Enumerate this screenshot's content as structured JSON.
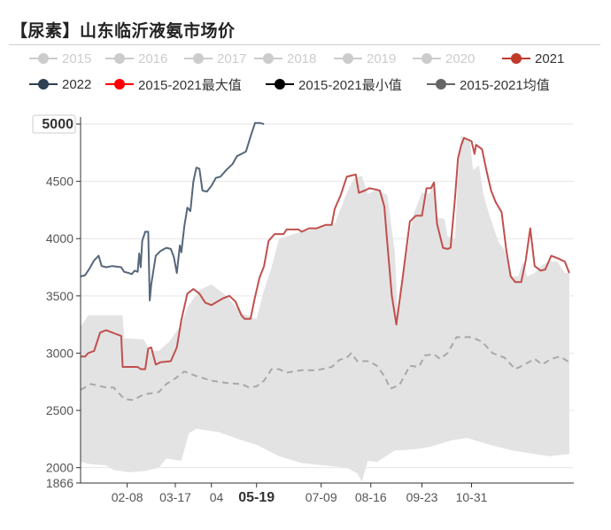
{
  "title": "【尿素】山东临沂液氨市场价",
  "legend": [
    {
      "label": "2015",
      "color": "#cccccc",
      "label_color": "#cccccc",
      "active": false
    },
    {
      "label": "2016",
      "color": "#cccccc",
      "label_color": "#cccccc",
      "active": false
    },
    {
      "label": "2017",
      "color": "#cccccc",
      "label_color": "#cccccc",
      "active": false
    },
    {
      "label": "2018",
      "color": "#cccccc",
      "label_color": "#cccccc",
      "active": false
    },
    {
      "label": "2019",
      "color": "#cccccc",
      "label_color": "#cccccc",
      "active": false
    },
    {
      "label": "2020",
      "color": "#cccccc",
      "label_color": "#cccccc",
      "active": false
    },
    {
      "label": "2021",
      "color": "#c0392b",
      "label_color": "#333333",
      "active": true
    },
    {
      "label": "2022",
      "color": "#2e4053",
      "label_color": "#333333",
      "active": true
    },
    {
      "label": "2015-2021最大值",
      "color": "#ff0000",
      "label_color": "#333333",
      "active": true
    },
    {
      "label": "2015-2021最小值",
      "color": "#000000",
      "label_color": "#333333",
      "active": true
    },
    {
      "label": "2015-2021均值",
      "color": "#666666",
      "label_color": "#333333",
      "active": true
    }
  ],
  "chart_data": {
    "type": "line",
    "x_range": [
      0,
      365
    ],
    "ylim": [
      1866,
      5000
    ],
    "y_ticks": [
      {
        "value": 5000,
        "label": "5000",
        "highlight": true
      },
      {
        "value": 4500,
        "label": "4500"
      },
      {
        "value": 4000,
        "label": "4000"
      },
      {
        "value": 3500,
        "label": "3500"
      },
      {
        "value": 3000,
        "label": "3000"
      },
      {
        "value": 2500,
        "label": "2500"
      },
      {
        "value": 2000,
        "label": "2000"
      },
      {
        "value": 1866,
        "label": "1866"
      }
    ],
    "x_ticks": [
      {
        "day": 34,
        "label": "02-08"
      },
      {
        "day": 66,
        "label": "03-17"
      },
      {
        "day": 90,
        "label": "04",
        "clip": true
      },
      {
        "day": 120,
        "label": "05-19",
        "highlight": true
      },
      {
        "day": 163,
        "label": "07-09"
      },
      {
        "day": 196,
        "label": "08-16"
      },
      {
        "day": 230,
        "label": "09-23"
      },
      {
        "day": 263,
        "label": "10-31"
      }
    ],
    "band": {
      "name": "2015-2021 range",
      "color": "#e3e3e3",
      "upper": [
        [
          3,
          3230
        ],
        [
          8,
          3330
        ],
        [
          31,
          3330
        ],
        [
          32,
          3130
        ],
        [
          45,
          3120
        ],
        [
          49,
          3020
        ],
        [
          55,
          3020
        ],
        [
          62,
          3100
        ],
        [
          70,
          3250
        ],
        [
          74,
          3400
        ],
        [
          82,
          3550
        ],
        [
          90,
          3600
        ],
        [
          100,
          3500
        ],
        [
          110,
          3350
        ],
        [
          114,
          3330
        ],
        [
          120,
          3300
        ],
        [
          125,
          3550
        ],
        [
          130,
          3750
        ],
        [
          135,
          4000
        ],
        [
          140,
          4020
        ],
        [
          150,
          4060
        ],
        [
          160,
          4090
        ],
        [
          172,
          4130
        ],
        [
          180,
          4400
        ],
        [
          185,
          4530
        ],
        [
          190,
          4550
        ],
        [
          194,
          4390
        ],
        [
          200,
          4430
        ],
        [
          207,
          4380
        ],
        [
          212,
          3880
        ],
        [
          214,
          3300
        ],
        [
          218,
          3700
        ],
        [
          224,
          4200
        ],
        [
          230,
          4400
        ],
        [
          235,
          4390
        ],
        [
          238,
          4500
        ],
        [
          239,
          4190
        ],
        [
          245,
          4170
        ],
        [
          247,
          4020
        ],
        [
          252,
          4000
        ],
        [
          254,
          4530
        ],
        [
          256,
          4900
        ],
        [
          262,
          4850
        ],
        [
          264,
          4600
        ],
        [
          268,
          4640
        ],
        [
          271,
          4380
        ],
        [
          275,
          4200
        ],
        [
          281,
          3970
        ],
        [
          285,
          3900
        ],
        [
          290,
          3670
        ],
        [
          294,
          3670
        ],
        [
          297,
          3800
        ],
        [
          300,
          3670
        ],
        [
          305,
          3700
        ],
        [
          310,
          3770
        ],
        [
          315,
          3800
        ],
        [
          320,
          3800
        ],
        [
          325,
          3700
        ],
        [
          328,
          3700
        ]
      ],
      "lower": [
        [
          3,
          2050
        ],
        [
          10,
          2030
        ],
        [
          20,
          2020
        ],
        [
          25,
          1980
        ],
        [
          35,
          1960
        ],
        [
          45,
          1970
        ],
        [
          55,
          2000
        ],
        [
          60,
          2080
        ],
        [
          70,
          2060
        ],
        [
          75,
          2300
        ],
        [
          80,
          2340
        ],
        [
          95,
          2310
        ],
        [
          110,
          2240
        ],
        [
          120,
          2200
        ],
        [
          135,
          2100
        ],
        [
          150,
          2040
        ],
        [
          165,
          2020
        ],
        [
          180,
          2000
        ],
        [
          187,
          1950
        ],
        [
          190,
          1880
        ],
        [
          194,
          2060
        ],
        [
          200,
          2050
        ],
        [
          212,
          2150
        ],
        [
          225,
          2160
        ],
        [
          235,
          2180
        ],
        [
          250,
          2240
        ],
        [
          260,
          2260
        ],
        [
          275,
          2200
        ],
        [
          290,
          2150
        ],
        [
          305,
          2120
        ],
        [
          315,
          2100
        ],
        [
          328,
          2120
        ]
      ]
    },
    "series": [
      {
        "name": "2015-2021均值",
        "color": "#a8a8a8",
        "dashed": true,
        "points": [
          [
            3,
            2680
          ],
          [
            10,
            2730
          ],
          [
            20,
            2700
          ],
          [
            25,
            2700
          ],
          [
            32,
            2600
          ],
          [
            38,
            2590
          ],
          [
            45,
            2640
          ],
          [
            55,
            2660
          ],
          [
            60,
            2730
          ],
          [
            66,
            2780
          ],
          [
            72,
            2840
          ],
          [
            80,
            2800
          ],
          [
            90,
            2760
          ],
          [
            100,
            2740
          ],
          [
            110,
            2730
          ],
          [
            115,
            2700
          ],
          [
            120,
            2710
          ],
          [
            125,
            2760
          ],
          [
            130,
            2860
          ],
          [
            135,
            2860
          ],
          [
            140,
            2830
          ],
          [
            150,
            2850
          ],
          [
            160,
            2850
          ],
          [
            170,
            2880
          ],
          [
            175,
            2940
          ],
          [
            180,
            2960
          ],
          [
            183,
            3000
          ],
          [
            187,
            2930
          ],
          [
            195,
            2930
          ],
          [
            200,
            2890
          ],
          [
            205,
            2800
          ],
          [
            209,
            2690
          ],
          [
            215,
            2720
          ],
          [
            222,
            2890
          ],
          [
            228,
            2880
          ],
          [
            232,
            2980
          ],
          [
            238,
            2990
          ],
          [
            242,
            2950
          ],
          [
            247,
            3000
          ],
          [
            253,
            3140
          ],
          [
            263,
            3140
          ],
          [
            270,
            3100
          ],
          [
            277,
            3000
          ],
          [
            285,
            2960
          ],
          [
            292,
            2860
          ],
          [
            298,
            2900
          ],
          [
            305,
            2950
          ],
          [
            310,
            2900
          ],
          [
            316,
            2950
          ],
          [
            322,
            2970
          ],
          [
            328,
            2920
          ]
        ]
      },
      {
        "name": "2021",
        "color": "#c0504d",
        "points": [
          [
            3,
            2970
          ],
          [
            6,
            2970
          ],
          [
            8,
            3000
          ],
          [
            12,
            3020
          ],
          [
            16,
            3180
          ],
          [
            20,
            3200
          ],
          [
            26,
            3170
          ],
          [
            30,
            3150
          ],
          [
            31,
            2880
          ],
          [
            41,
            2880
          ],
          [
            43,
            2860
          ],
          [
            46,
            2860
          ],
          [
            48,
            3040
          ],
          [
            50,
            3050
          ],
          [
            53,
            2900
          ],
          [
            56,
            2920
          ],
          [
            63,
            2930
          ],
          [
            67,
            3050
          ],
          [
            70,
            3290
          ],
          [
            74,
            3520
          ],
          [
            78,
            3560
          ],
          [
            82,
            3520
          ],
          [
            86,
            3440
          ],
          [
            90,
            3420
          ],
          [
            94,
            3450
          ],
          [
            98,
            3480
          ],
          [
            102,
            3500
          ],
          [
            106,
            3450
          ],
          [
            110,
            3330
          ],
          [
            112,
            3300
          ],
          [
            116,
            3300
          ],
          [
            119,
            3490
          ],
          [
            122,
            3660
          ],
          [
            125,
            3760
          ],
          [
            128,
            3980
          ],
          [
            132,
            4040
          ],
          [
            138,
            4040
          ],
          [
            140,
            4080
          ],
          [
            148,
            4080
          ],
          [
            150,
            4060
          ],
          [
            155,
            4090
          ],
          [
            160,
            4090
          ],
          [
            166,
            4120
          ],
          [
            170,
            4120
          ],
          [
            172,
            4260
          ],
          [
            176,
            4380
          ],
          [
            180,
            4540
          ],
          [
            186,
            4560
          ],
          [
            188,
            4400
          ],
          [
            192,
            4420
          ],
          [
            195,
            4440
          ],
          [
            199,
            4430
          ],
          [
            202,
            4420
          ],
          [
            205,
            4280
          ],
          [
            207,
            3960
          ],
          [
            210,
            3500
          ],
          [
            213,
            3250
          ],
          [
            217,
            3640
          ],
          [
            222,
            4150
          ],
          [
            226,
            4200
          ],
          [
            230,
            4200
          ],
          [
            233,
            4440
          ],
          [
            236,
            4440
          ],
          [
            238,
            4490
          ],
          [
            240,
            4130
          ],
          [
            244,
            3920
          ],
          [
            247,
            3910
          ],
          [
            249,
            3920
          ],
          [
            252,
            4350
          ],
          [
            254,
            4700
          ],
          [
            256,
            4810
          ],
          [
            258,
            4880
          ],
          [
            263,
            4850
          ],
          [
            265,
            4740
          ],
          [
            266,
            4820
          ],
          [
            270,
            4780
          ],
          [
            273,
            4590
          ],
          [
            276,
            4420
          ],
          [
            279,
            4320
          ],
          [
            283,
            4230
          ],
          [
            286,
            3910
          ],
          [
            289,
            3670
          ],
          [
            292,
            3620
          ],
          [
            296,
            3620
          ],
          [
            299,
            3810
          ],
          [
            302,
            4090
          ],
          [
            305,
            3760
          ],
          [
            309,
            3720
          ],
          [
            312,
            3730
          ],
          [
            316,
            3850
          ],
          [
            320,
            3830
          ],
          [
            325,
            3800
          ],
          [
            328,
            3700
          ]
        ]
      },
      {
        "name": "2022",
        "color": "#56677a",
        "points": [
          [
            3,
            3670
          ],
          [
            6,
            3680
          ],
          [
            9,
            3740
          ],
          [
            12,
            3810
          ],
          [
            15,
            3850
          ],
          [
            17,
            3760
          ],
          [
            20,
            3750
          ],
          [
            24,
            3760
          ],
          [
            30,
            3750
          ],
          [
            32,
            3710
          ],
          [
            35,
            3700
          ],
          [
            37,
            3690
          ],
          [
            39,
            3720
          ],
          [
            41,
            3710
          ],
          [
            42,
            3870
          ],
          [
            43,
            3750
          ],
          [
            44,
            3980
          ],
          [
            46,
            4060
          ],
          [
            48,
            4060
          ],
          [
            49,
            3460
          ],
          [
            50,
            3600
          ],
          [
            53,
            3850
          ],
          [
            56,
            3890
          ],
          [
            60,
            3920
          ],
          [
            63,
            3910
          ],
          [
            65,
            3840
          ],
          [
            67,
            3700
          ],
          [
            69,
            3940
          ],
          [
            70,
            3880
          ],
          [
            72,
            4110
          ],
          [
            74,
            4270
          ],
          [
            76,
            4240
          ],
          [
            78,
            4500
          ],
          [
            80,
            4620
          ],
          [
            82,
            4610
          ],
          [
            84,
            4420
          ],
          [
            87,
            4410
          ],
          [
            90,
            4460
          ],
          [
            93,
            4530
          ],
          [
            96,
            4540
          ],
          [
            100,
            4600
          ],
          [
            104,
            4650
          ],
          [
            107,
            4720
          ],
          [
            110,
            4740
          ],
          [
            113,
            4760
          ],
          [
            116,
            4890
          ],
          [
            119,
            5010
          ],
          [
            122,
            5010
          ],
          [
            125,
            5000
          ]
        ]
      }
    ]
  }
}
